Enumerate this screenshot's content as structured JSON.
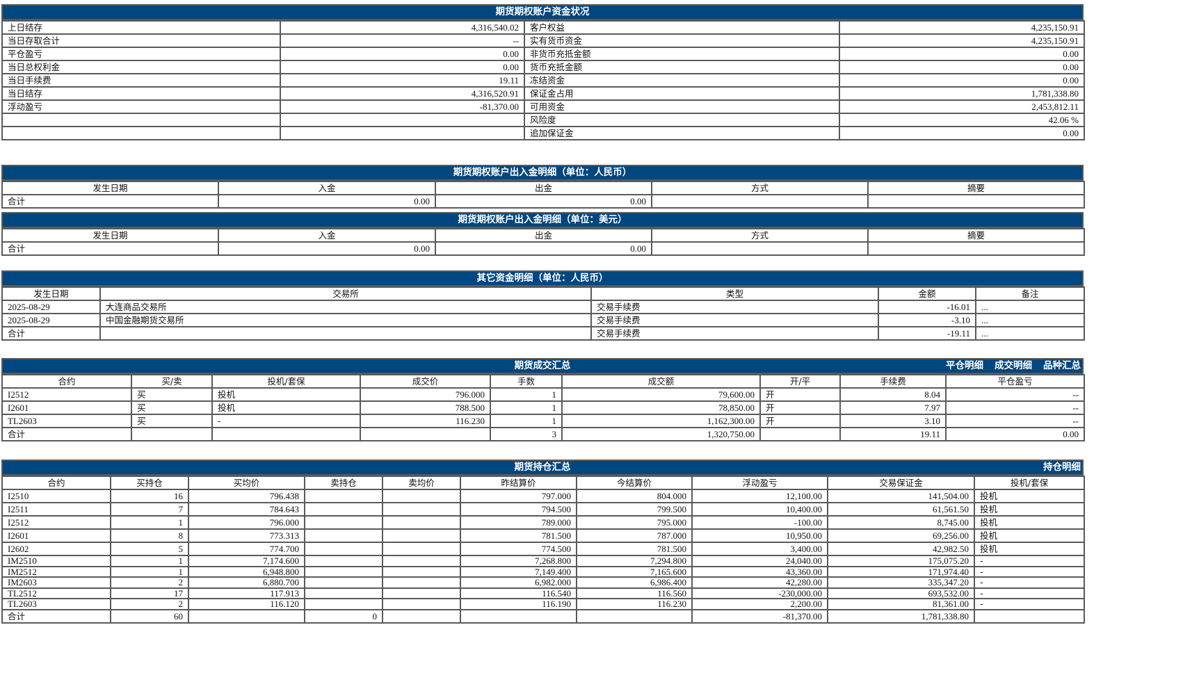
{
  "summary": {
    "title": "期货期权账户资金状况",
    "rows": [
      [
        "上日结存",
        "4,316,540.02",
        "客户权益",
        "4,235,150.91"
      ],
      [
        "当日存取合计",
        "--",
        "实有货币资金",
        "4,235,150.91"
      ],
      [
        "平仓盈亏",
        "0.00",
        "非货币充抵金额",
        "0.00"
      ],
      [
        "当日总权利金",
        "0.00",
        "货币充抵金额",
        "0.00"
      ],
      [
        "当日手续费",
        "19.11",
        "冻结资金",
        "0.00"
      ],
      [
        "当日结存",
        "4,316,520.91",
        "保证金占用",
        "1,781,338.80"
      ],
      [
        "浮动盈亏",
        "-81,370.00",
        "可用资金",
        "2,453,812.11"
      ],
      [
        "",
        "",
        "风险度",
        "42.06 %"
      ],
      [
        "",
        "",
        "追加保证金",
        "0.00"
      ]
    ]
  },
  "cny_flow": {
    "title": "期货期权账户出入金明细（单位：人民币）",
    "headers": [
      "发生日期",
      "入金",
      "出金",
      "方式",
      "摘要"
    ],
    "rows": [
      [
        "合计",
        "0.00",
        "0.00",
        "",
        ""
      ]
    ]
  },
  "usd_flow": {
    "title": "期货期权账户出入金明细（单位：美元）",
    "headers": [
      "发生日期",
      "入金",
      "出金",
      "方式",
      "摘要"
    ],
    "rows": [
      [
        "合计",
        "0.00",
        "0.00",
        "",
        ""
      ]
    ]
  },
  "other_funds": {
    "title": "其它资金明细（单位：人民币）",
    "headers": [
      "发生日期",
      "交易所",
      "类型",
      "金额",
      "备注"
    ],
    "rows": [
      [
        "2025-08-29",
        "大连商品交易所",
        "交易手续费",
        "-16.01",
        "..."
      ],
      [
        "2025-08-29",
        "中国金融期货交易所",
        "交易手续费",
        "-3.10",
        "..."
      ],
      [
        "合计",
        "",
        "交易手续费",
        "-19.11",
        "..."
      ]
    ]
  },
  "trades": {
    "title": "期货成交汇总",
    "links": [
      "平仓明细",
      "成交明细",
      "品种汇总"
    ],
    "headers": [
      "合约",
      "买/卖",
      "投机/套保",
      "成交价",
      "手数",
      "成交额",
      "开/平",
      "手续费",
      "平仓盈亏"
    ],
    "rows": [
      [
        "I2512",
        "买",
        "投机",
        "796.000",
        "1",
        "79,600.00",
        "开",
        "8.04",
        "--"
      ],
      [
        "I2601",
        "买",
        "投机",
        "788.500",
        "1",
        "78,850.00",
        "开",
        "7.97",
        "--"
      ],
      [
        "TL2603",
        "买",
        "-",
        "116.230",
        "1",
        "1,162,300.00",
        "开",
        "3.10",
        "--"
      ],
      [
        "合计",
        "",
        "",
        "",
        "3",
        "1,320,750.00",
        "",
        "19.11",
        "0.00"
      ]
    ]
  },
  "positions": {
    "title": "期货持仓汇总",
    "links": [
      "持仓明细"
    ],
    "headers": [
      "合约",
      "买持仓",
      "买均价",
      "卖持仓",
      "卖均价",
      "昨结算价",
      "今结算价",
      "浮动盈亏",
      "交易保证金",
      "投机/套保"
    ],
    "rows": [
      [
        "I2510",
        "16",
        "796.438",
        "",
        "",
        "797.000",
        "804.000",
        "12,100.00",
        "141,504.00",
        "投机"
      ],
      [
        "I2511",
        "7",
        "784.643",
        "",
        "",
        "794.500",
        "799.500",
        "10,400.00",
        "61,561.50",
        "投机"
      ],
      [
        "I2512",
        "1",
        "796.000",
        "",
        "",
        "789.000",
        "795.000",
        "-100.00",
        "8,745.00",
        "投机"
      ],
      [
        "I2601",
        "8",
        "773.313",
        "",
        "",
        "781.500",
        "787.000",
        "10,950.00",
        "69,256.00",
        "投机"
      ],
      [
        "I2602",
        "5",
        "774.700",
        "",
        "",
        "774.500",
        "781.500",
        "3,400.00",
        "42,982.50",
        "投机"
      ],
      [
        "IM2510",
        "1",
        "7,174.600",
        "",
        "",
        "7,268.800",
        "7,294.800",
        "24,040.00",
        "175,075.20",
        "-"
      ],
      [
        "IM2512",
        "1",
        "6,948.800",
        "",
        "",
        "7,149.400",
        "7,165.600",
        "43,360.00",
        "171,974.40",
        "-"
      ],
      [
        "IM2603",
        "2",
        "6,880.700",
        "",
        "",
        "6,982.000",
        "6,986.400",
        "42,280.00",
        "335,347.20",
        "-"
      ],
      [
        "TL2512",
        "17",
        "117.913",
        "",
        "",
        "116.540",
        "116.560",
        "-230,000.00",
        "693,532.00",
        "-"
      ],
      [
        "TL2603",
        "2",
        "116.120",
        "",
        "",
        "116.190",
        "116.230",
        "2,200.00",
        "81,361.00",
        "-"
      ],
      [
        "合计",
        "60",
        "",
        "0",
        "",
        "",
        "",
        "-81,370.00",
        "1,781,338.80",
        ""
      ]
    ]
  },
  "colors": {
    "header_bg": "#00467f",
    "header_text": "#ffffff",
    "border": "#5a5a5a"
  }
}
